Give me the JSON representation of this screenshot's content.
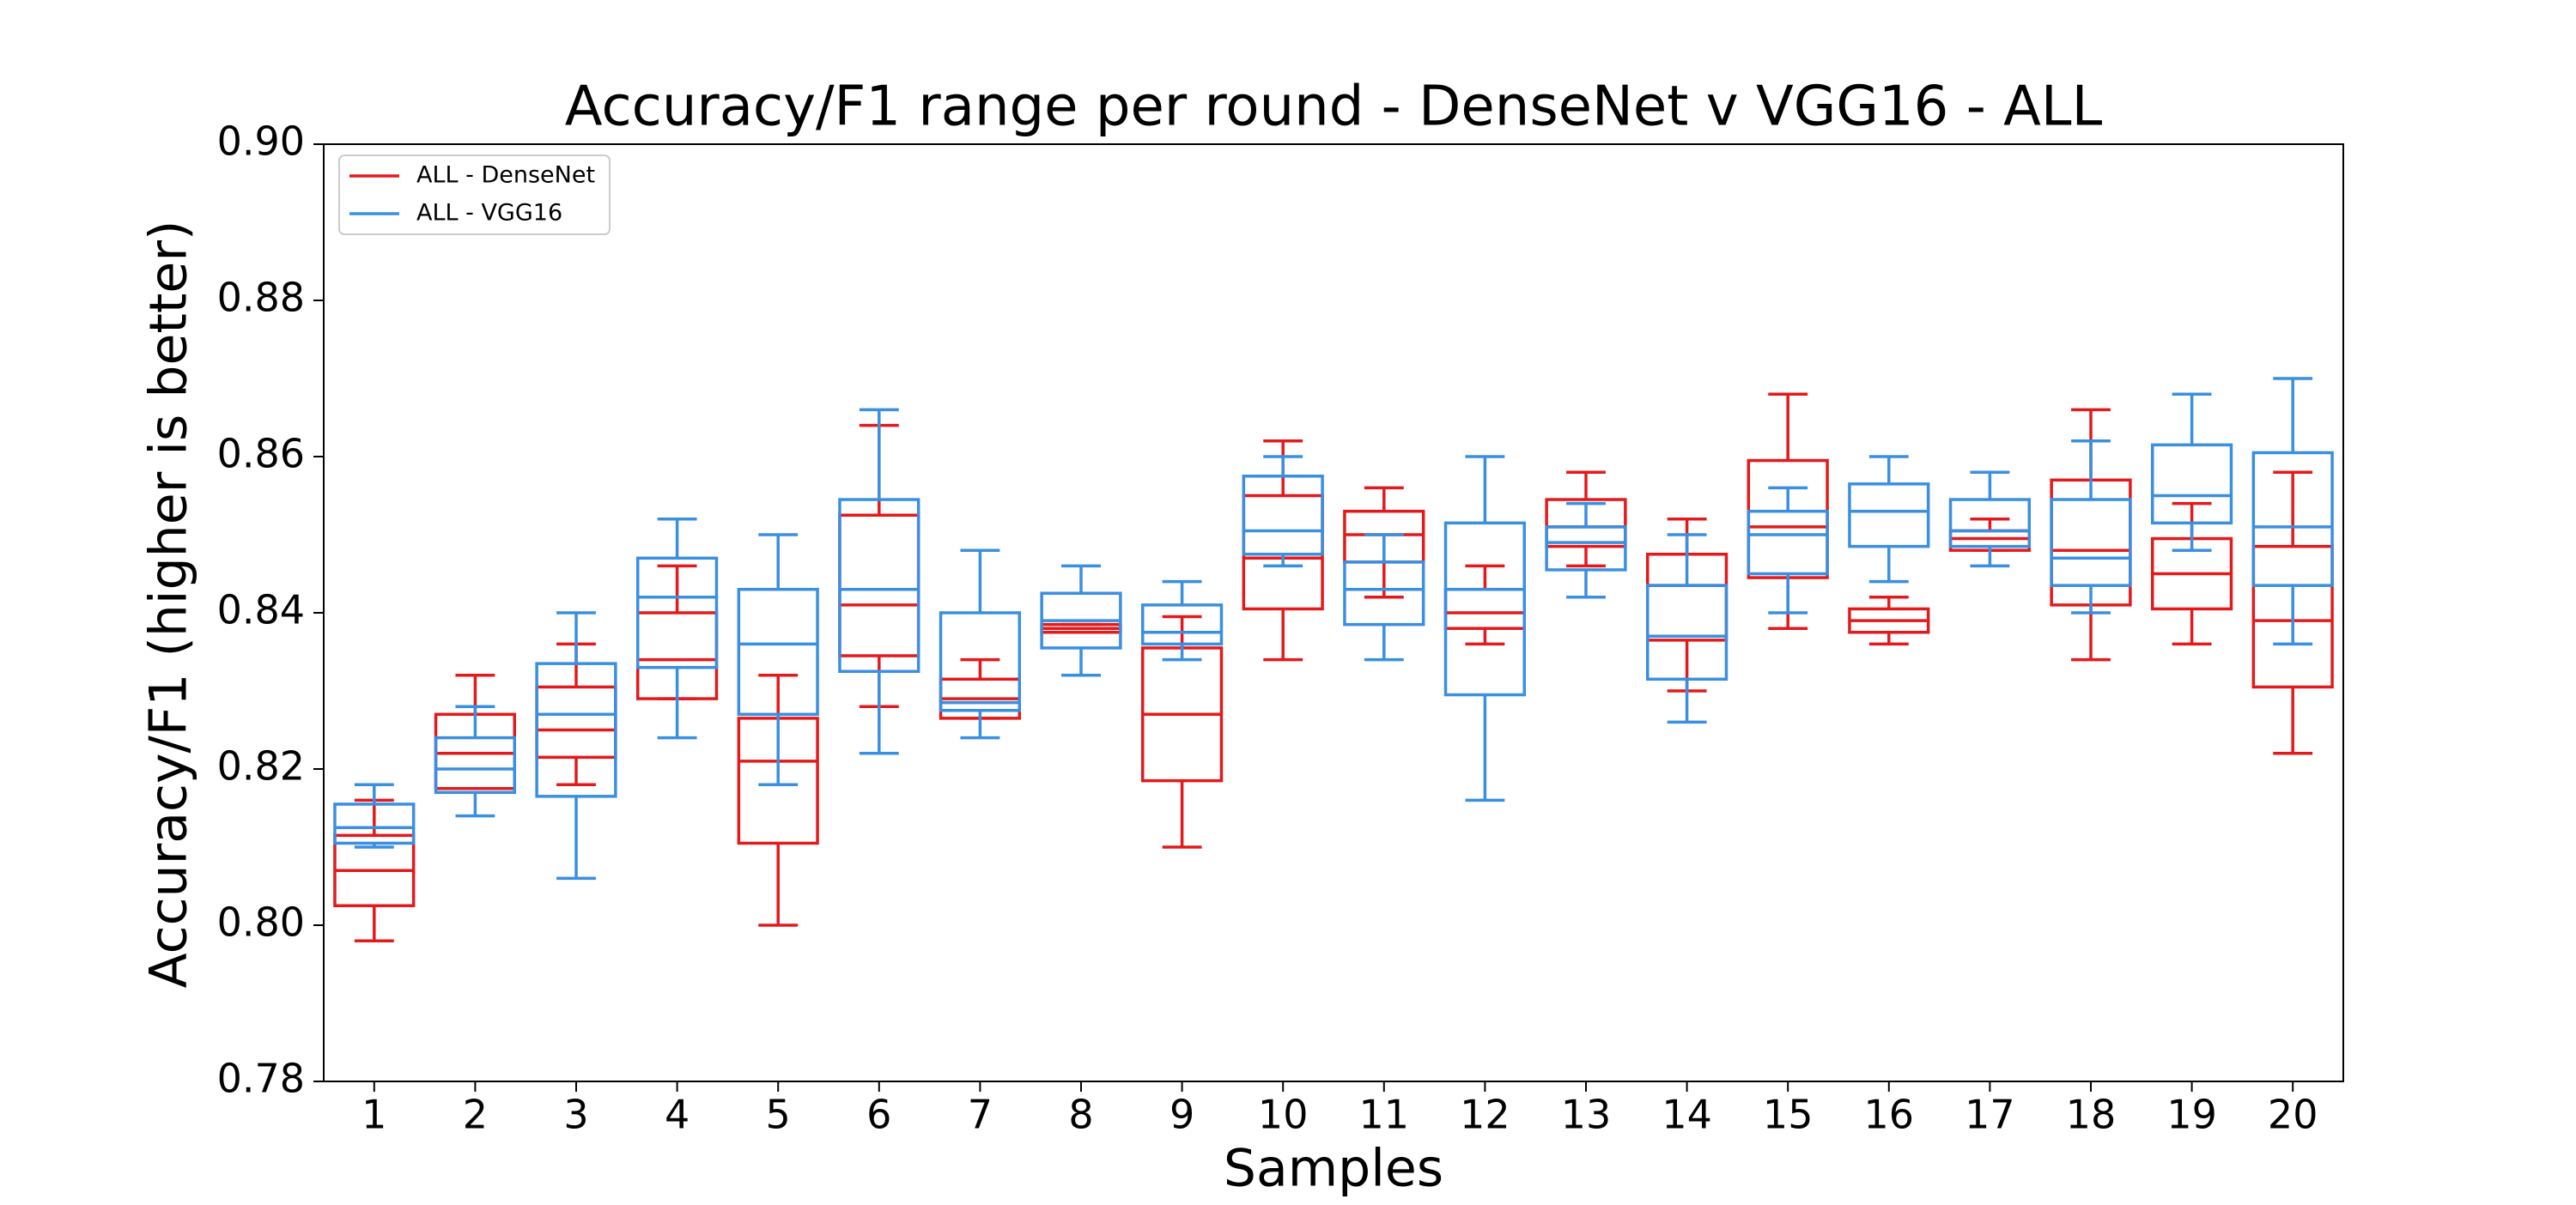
{
  "chart_data": {
    "type": "box",
    "title": "Accuracy/F1 range per round - DenseNet v VGG16 - ALL",
    "x_label": "Samples",
    "y_label": "Accuracy/F1 (higher is better)",
    "categories": [
      "1",
      "2",
      "3",
      "4",
      "5",
      "6",
      "7",
      "8",
      "9",
      "10",
      "11",
      "12",
      "13",
      "14",
      "15",
      "16",
      "17",
      "18",
      "19",
      "20"
    ],
    "ylim": [
      0.78,
      0.9
    ],
    "yticks": [
      0.78,
      {
        "value": 0.8,
        "label": "0.80"
      },
      0.82,
      0.84,
      0.86,
      0.88,
      {
        "value": 0.9,
        "label": "0.90"
      }
    ],
    "legend": "upper left",
    "series": [
      {
        "name": "ALL - DenseNet",
        "color": "#e31a1c",
        "low": [
          0.798,
          0.8175,
          0.818,
          0.829,
          0.8,
          0.828,
          0.8265,
          0.8375,
          0.81,
          0.834,
          0.842,
          0.836,
          0.846,
          0.83,
          0.838,
          0.836,
          0.848,
          0.834,
          0.836,
          0.822
        ],
        "q1": [
          0.8025,
          0.8175,
          0.8215,
          0.829,
          0.8105,
          0.8345,
          0.8265,
          0.8375,
          0.8185,
          0.8405,
          0.8465,
          0.838,
          0.8485,
          0.8365,
          0.8445,
          0.8375,
          0.848,
          0.841,
          0.8405,
          0.8305
        ],
        "median": [
          0.807,
          0.822,
          0.825,
          0.834,
          0.821,
          0.841,
          0.829,
          0.838,
          0.827,
          0.847,
          0.85,
          0.84,
          0.851,
          0.8435,
          0.851,
          0.839,
          0.8495,
          0.848,
          0.845,
          0.839
        ],
        "q3": [
          0.8115,
          0.827,
          0.8305,
          0.84,
          0.8265,
          0.8525,
          0.8315,
          0.8385,
          0.8355,
          0.855,
          0.853,
          0.843,
          0.8545,
          0.8475,
          0.8595,
          0.8405,
          0.8505,
          0.857,
          0.8495,
          0.8485
        ],
        "high": [
          0.816,
          0.832,
          0.836,
          0.846,
          0.832,
          0.864,
          0.834,
          0.8385,
          0.8395,
          0.862,
          0.856,
          0.846,
          0.858,
          0.852,
          0.868,
          0.842,
          0.852,
          0.866,
          0.854,
          0.858
        ]
      },
      {
        "name": "ALL - VGG16",
        "color": "#3a8fe0",
        "low": [
          0.81,
          0.814,
          0.806,
          0.824,
          0.818,
          0.822,
          0.824,
          0.832,
          0.834,
          0.846,
          0.834,
          0.816,
          0.842,
          0.826,
          0.84,
          0.844,
          0.846,
          0.84,
          0.848,
          0.836
        ],
        "q1": [
          0.8105,
          0.817,
          0.8165,
          0.833,
          0.827,
          0.8325,
          0.8275,
          0.8355,
          0.836,
          0.8475,
          0.8385,
          0.8295,
          0.8455,
          0.8315,
          0.845,
          0.8485,
          0.8485,
          0.8435,
          0.8515,
          0.8435
        ],
        "median": [
          0.8125,
          0.82,
          0.827,
          0.842,
          0.836,
          0.843,
          0.8285,
          0.839,
          0.8375,
          0.8505,
          0.843,
          0.843,
          0.849,
          0.837,
          0.85,
          0.853,
          0.8505,
          0.847,
          0.855,
          0.851
        ],
        "q3": [
          0.8155,
          0.824,
          0.8335,
          0.847,
          0.843,
          0.8545,
          0.84,
          0.8425,
          0.841,
          0.8575,
          0.8465,
          0.8515,
          0.851,
          0.8435,
          0.853,
          0.8565,
          0.8545,
          0.8545,
          0.8615,
          0.8605
        ],
        "high": [
          0.818,
          0.828,
          0.84,
          0.852,
          0.85,
          0.866,
          0.848,
          0.846,
          0.844,
          0.86,
          0.85,
          0.86,
          0.854,
          0.85,
          0.856,
          0.86,
          0.858,
          0.862,
          0.868,
          0.87
        ]
      }
    ]
  }
}
